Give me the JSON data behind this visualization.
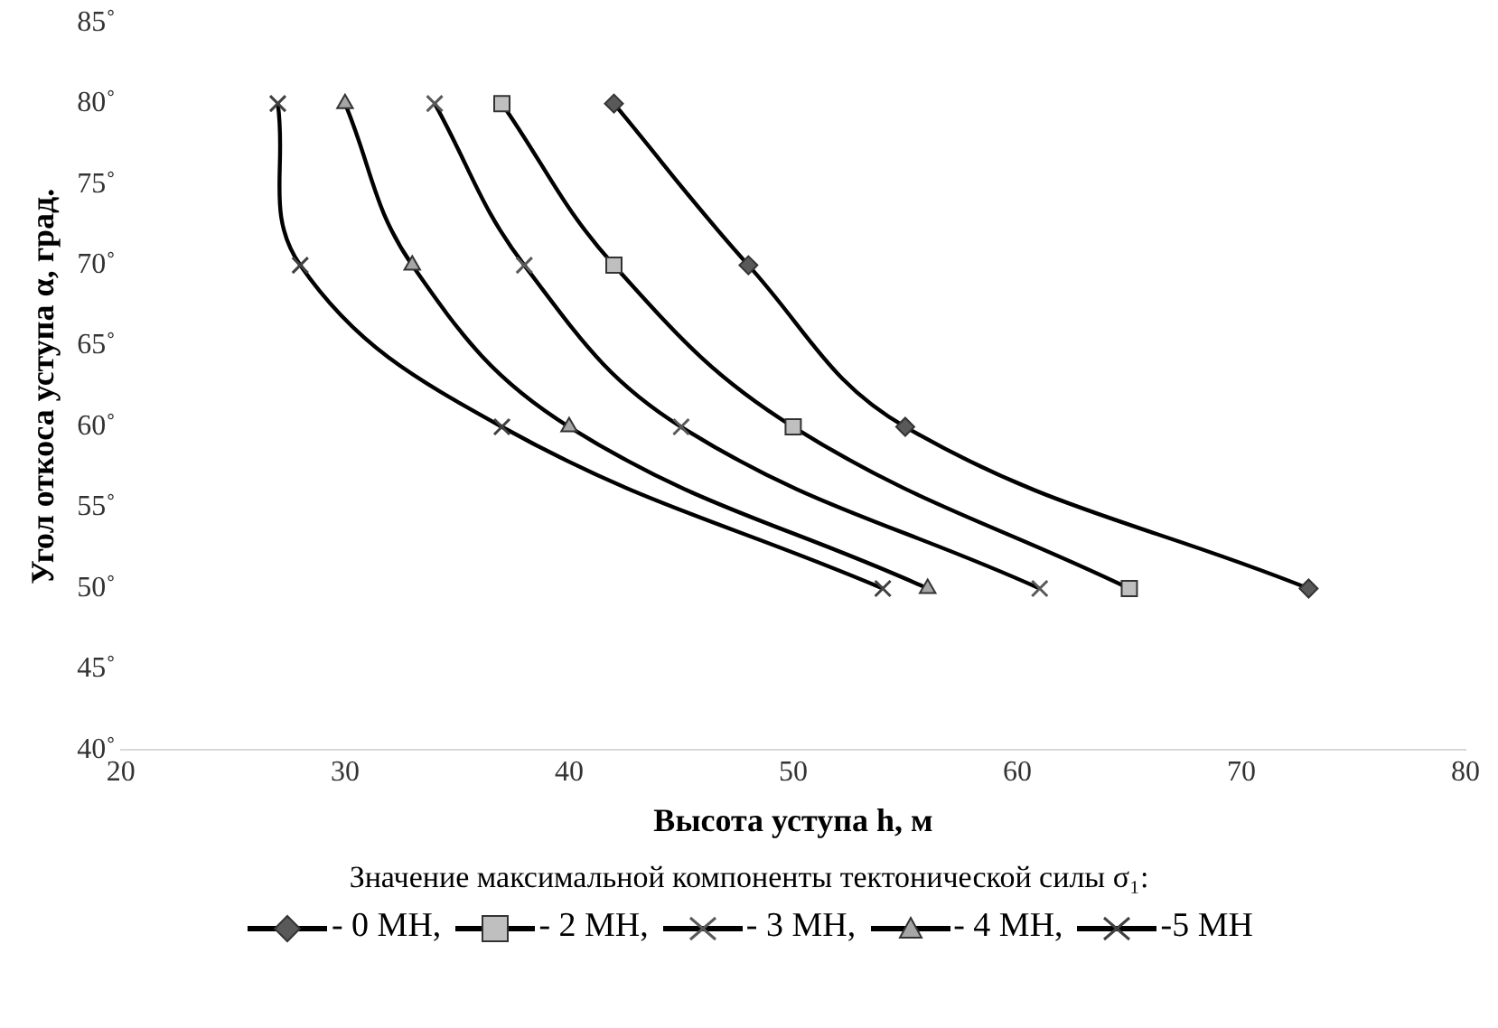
{
  "chart_data": {
    "type": "line",
    "xlabel": "Высота уступа h, м",
    "ylabel": "Угол откоса уступа α, град.",
    "legend_title": "Значение максимальной компоненты тектонической силы σ₁:",
    "xlim": [
      20,
      80
    ],
    "xticks": [
      20,
      30,
      40,
      50,
      60,
      70,
      80
    ],
    "ylim": [
      40,
      85
    ],
    "yticks": [
      {
        "value": 40,
        "label": "40˚"
      },
      {
        "value": 45,
        "label": "45˚"
      },
      {
        "value": 50,
        "label": "50˚"
      },
      {
        "value": 55,
        "label": "55˚"
      },
      {
        "value": 60,
        "label": "60˚"
      },
      {
        "value": 65,
        "label": "65˚"
      },
      {
        "value": 70,
        "label": "70˚"
      },
      {
        "value": 75,
        "label": "75˚"
      },
      {
        "value": 80,
        "label": "80˚"
      },
      {
        "value": 85,
        "label": "85˚"
      }
    ],
    "grid": false,
    "legend": "bottom",
    "series": [
      {
        "name": "- 0 МН,",
        "color": "#595959",
        "marker": "diamond",
        "x": [
          42,
          48,
          55,
          73
        ],
        "values": [
          80,
          70,
          60,
          50
        ]
      },
      {
        "name": "- 2 МН,",
        "color": "#bfbfbf",
        "marker": "square",
        "x": [
          37,
          42,
          50,
          65
        ],
        "values": [
          80,
          70,
          60,
          50
        ]
      },
      {
        "name": "- 3 МН,",
        "color": "#595959",
        "marker": "cross",
        "x": [
          34,
          38,
          45,
          61
        ],
        "values": [
          80,
          70,
          60,
          50
        ]
      },
      {
        "name": "- 4 МН,",
        "color": "#a6a6a6",
        "marker": "triangle",
        "x": [
          30,
          33,
          40,
          56
        ],
        "values": [
          80,
          70,
          60,
          50
        ]
      },
      {
        "name": "-5 МН",
        "color": "#404040",
        "marker": "cross",
        "x": [
          27,
          28,
          37,
          54
        ],
        "values": [
          80,
          70,
          60,
          50
        ]
      }
    ]
  }
}
